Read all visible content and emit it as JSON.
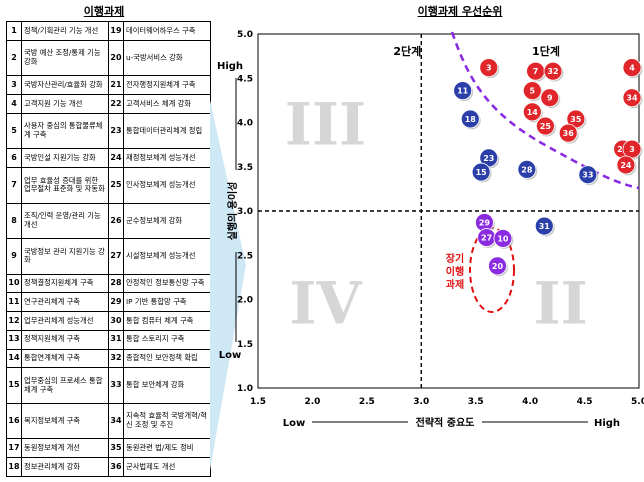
{
  "left_title": "이행과제",
  "tasks": [
    {
      "no": "1",
      "name": "정책/기획관리 기능 개선"
    },
    {
      "no": "2",
      "name": "국방 예산 조정/통제 기능 강화"
    },
    {
      "no": "3",
      "name": "국방자산관리/효율화 강화"
    },
    {
      "no": "4",
      "name": "고객지원 기능 개선"
    },
    {
      "no": "5",
      "name": "사용자 중심의 통합물류체계 구축"
    },
    {
      "no": "6",
      "name": "국방인설 지원기능 강화"
    },
    {
      "no": "7",
      "name": "업무 효율성 증대를 위한 업무절차 표준화 및 자동화"
    },
    {
      "no": "8",
      "name": "조직/인력 운영/관리 기능 개선"
    },
    {
      "no": "9",
      "name": "국방정보 관리 지원기능 강화"
    },
    {
      "no": "10",
      "name": "정책결정지원체계 구축"
    },
    {
      "no": "11",
      "name": "연구관리체계 구축"
    },
    {
      "no": "12",
      "name": "업무관리체계 성능개선"
    },
    {
      "no": "13",
      "name": "정책지원체계 구축"
    },
    {
      "no": "14",
      "name": "통합연계체계 구축"
    },
    {
      "no": "15",
      "name": "업무중심의 프로세스 통합체계 구축"
    },
    {
      "no": "16",
      "name": "복지정보체계 구축"
    },
    {
      "no": "17",
      "name": "동원정보체계 개선"
    },
    {
      "no": "18",
      "name": "정보관리체계 강화"
    },
    {
      "no": "19",
      "name": "데이터웨어하우스 구축"
    },
    {
      "no": "20",
      "name": "u-국방서비스 강화"
    },
    {
      "no": "21",
      "name": "전자행정지원체계 구축"
    },
    {
      "no": "22",
      "name": "고객서비스 체계 강화"
    },
    {
      "no": "23",
      "name": "통합데이터관리체계 정립"
    },
    {
      "no": "24",
      "name": "재정정보체계 성능개선"
    },
    {
      "no": "25",
      "name": "인사정보체계 성능개선"
    },
    {
      "no": "26",
      "name": "군수정보체계 강화"
    },
    {
      "no": "27",
      "name": "시설정보체계 성능개선"
    },
    {
      "no": "28",
      "name": "안정적인 정보통신망 구축"
    },
    {
      "no": "29",
      "name": "IP 기반 통합망 구축"
    },
    {
      "no": "30",
      "name": "통합 컴퓨터 체계 구축"
    },
    {
      "no": "31",
      "name": "통합 스토리지 구축"
    },
    {
      "no": "32",
      "name": "종합적인 보안정책 확립"
    },
    {
      "no": "33",
      "name": "통합 보안체계 강화"
    },
    {
      "no": "34",
      "name": "지속적 효율적 국방개혁/혁신 조정 및 추진"
    },
    {
      "no": "35",
      "name": "동원관련 법/제도 정비"
    },
    {
      "no": "36",
      "name": "군사법제도 개선"
    }
  ],
  "chart_data": {
    "type": "scatter",
    "title": "이행과제 우선순위",
    "xlabel": "전략적 중요도",
    "ylabel": "실행의 용이성",
    "xlim": [
      1.5,
      5.0
    ],
    "ylim": [
      1.0,
      5.0
    ],
    "xticks": [
      "1.5",
      "2.0",
      "2.5",
      "3.0",
      "3.5",
      "4.0",
      "4.5",
      "5.0"
    ],
    "yticks": [
      "1.0",
      "1.5",
      "2.0",
      "2.5",
      "3.0",
      "3.5",
      "4.0",
      "4.5",
      "5.0"
    ],
    "x_low": "Low",
    "x_high": "High",
    "y_low": "Low",
    "y_high": "High",
    "quadrant_labels": [
      "III",
      "IV",
      "II"
    ],
    "phase_labels": [
      "2단계",
      "1단계"
    ],
    "longterm_label": "장기 이행 과제",
    "threshold_x": 3.0,
    "threshold_y": 3.0,
    "points": [
      {
        "label": "3",
        "x": 3.62,
        "y": 4.62,
        "color": "red"
      },
      {
        "label": "11",
        "x": 3.38,
        "y": 4.36,
        "color": "blue"
      },
      {
        "label": "7",
        "x": 4.05,
        "y": 4.58,
        "color": "red"
      },
      {
        "label": "32",
        "x": 4.21,
        "y": 4.58,
        "color": "red"
      },
      {
        "label": "4",
        "x": 4.95,
        "y": 4.62,
        "color": "red"
      },
      {
        "label": "34",
        "x": 5.02,
        "y": 4.28,
        "color": "red"
      },
      {
        "label": "5",
        "x": 4.02,
        "y": 4.36,
        "color": "red"
      },
      {
        "label": "9",
        "x": 4.18,
        "y": 4.28,
        "color": "red"
      },
      {
        "label": "18",
        "x": 3.45,
        "y": 4.04,
        "color": "blue"
      },
      {
        "label": "14",
        "x": 4.02,
        "y": 4.12,
        "color": "red"
      },
      {
        "label": "35",
        "x": 4.42,
        "y": 4.04,
        "color": "red"
      },
      {
        "label": "25",
        "x": 4.14,
        "y": 3.96,
        "color": "red"
      },
      {
        "label": "36",
        "x": 4.35,
        "y": 3.88,
        "color": "red"
      },
      {
        "label": "23",
        "x": 3.62,
        "y": 3.6,
        "color": "blue"
      },
      {
        "label": "22",
        "x": 4.85,
        "y": 3.7,
        "color": "red"
      },
      {
        "label": "3",
        "x": 5.02,
        "y": 3.7,
        "color": "red"
      },
      {
        "label": "15",
        "x": 3.55,
        "y": 3.44,
        "color": "blue"
      },
      {
        "label": "28",
        "x": 3.97,
        "y": 3.47,
        "color": "blue"
      },
      {
        "label": "24",
        "x": 4.88,
        "y": 3.52,
        "color": "red"
      },
      {
        "label": "33",
        "x": 4.53,
        "y": 3.41,
        "color": "blue"
      },
      {
        "label": "29",
        "x": 3.58,
        "y": 2.87,
        "color": "purple"
      },
      {
        "label": "27",
        "x": 3.6,
        "y": 2.7,
        "color": "purple"
      },
      {
        "label": "10",
        "x": 3.75,
        "y": 2.69,
        "color": "purple"
      },
      {
        "label": "31",
        "x": 4.13,
        "y": 2.83,
        "color": "blue"
      },
      {
        "label": "20",
        "x": 3.7,
        "y": 2.38,
        "color": "purple"
      }
    ]
  },
  "colors": {
    "red": "#e0262a",
    "blue": "#2b3fa8",
    "purple": "#8b2be0",
    "divider": "#000000",
    "curve": "#8a2be2",
    "longterm": "#e01010",
    "quadrant_text": "#d6d6d6"
  }
}
